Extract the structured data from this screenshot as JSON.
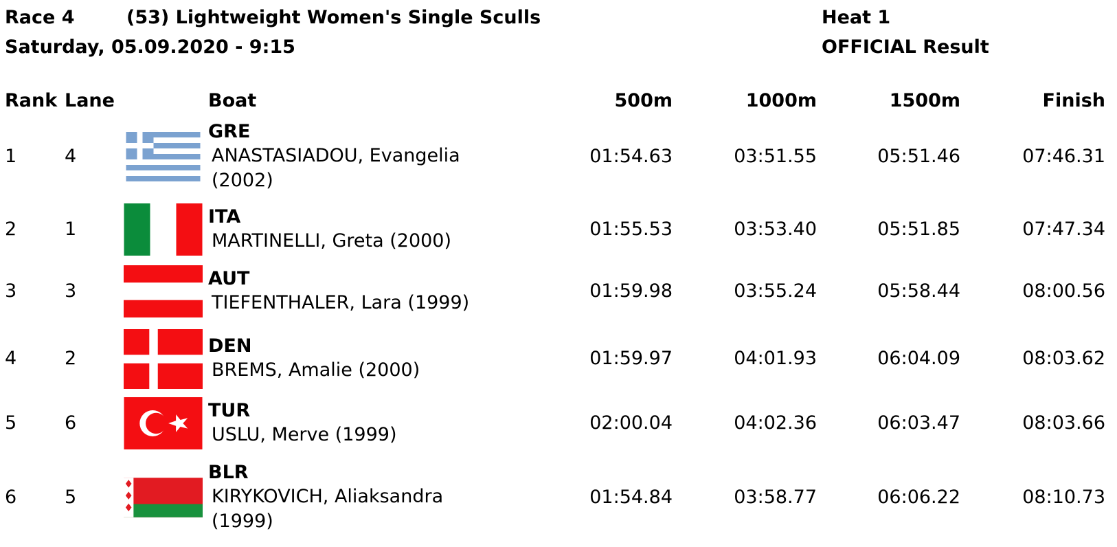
{
  "header": {
    "race": "Race 4",
    "event": "(53) Lightweight Women's Single Sculls",
    "heat": "Heat 1",
    "date": "Saturday, 05.09.2020 - 9:15",
    "status": "OFFICIAL Result"
  },
  "table": {
    "columns": [
      "Rank",
      "Lane",
      "Boat",
      "500m",
      "1000m",
      "1500m",
      "Finish"
    ],
    "rows": [
      {
        "rank": "1",
        "lane": "4",
        "country": "GRE",
        "athlete": "ANASTASIADOU, Evangelia (2002)",
        "splits": [
          "01:54.63",
          "03:51.55",
          "05:51.46",
          "07:46.31"
        ]
      },
      {
        "rank": "2",
        "lane": "1",
        "country": "ITA",
        "athlete": "MARTINELLI, Greta (2000)",
        "splits": [
          "01:55.53",
          "03:53.40",
          "05:51.85",
          "07:47.34"
        ]
      },
      {
        "rank": "3",
        "lane": "3",
        "country": "AUT",
        "athlete": "TIEFENTHALER, Lara (1999)",
        "splits": [
          "01:59.98",
          "03:55.24",
          "05:58.44",
          "08:00.56"
        ]
      },
      {
        "rank": "4",
        "lane": "2",
        "country": "DEN",
        "athlete": "BREMS, Amalie (2000)",
        "splits": [
          "01:59.97",
          "04:01.93",
          "06:04.09",
          "08:03.62"
        ]
      },
      {
        "rank": "5",
        "lane": "6",
        "country": "TUR",
        "athlete": "USLU, Merve (1999)",
        "splits": [
          "02:00.04",
          "04:02.36",
          "06:03.47",
          "08:03.66"
        ]
      },
      {
        "rank": "6",
        "lane": "5",
        "country": "BLR",
        "athlete": "KIRYKOVICH, Aliaksandra (1999)",
        "splits": [
          "01:54.84",
          "03:58.77",
          "06:06.22",
          "08:10.73"
        ]
      }
    ]
  }
}
